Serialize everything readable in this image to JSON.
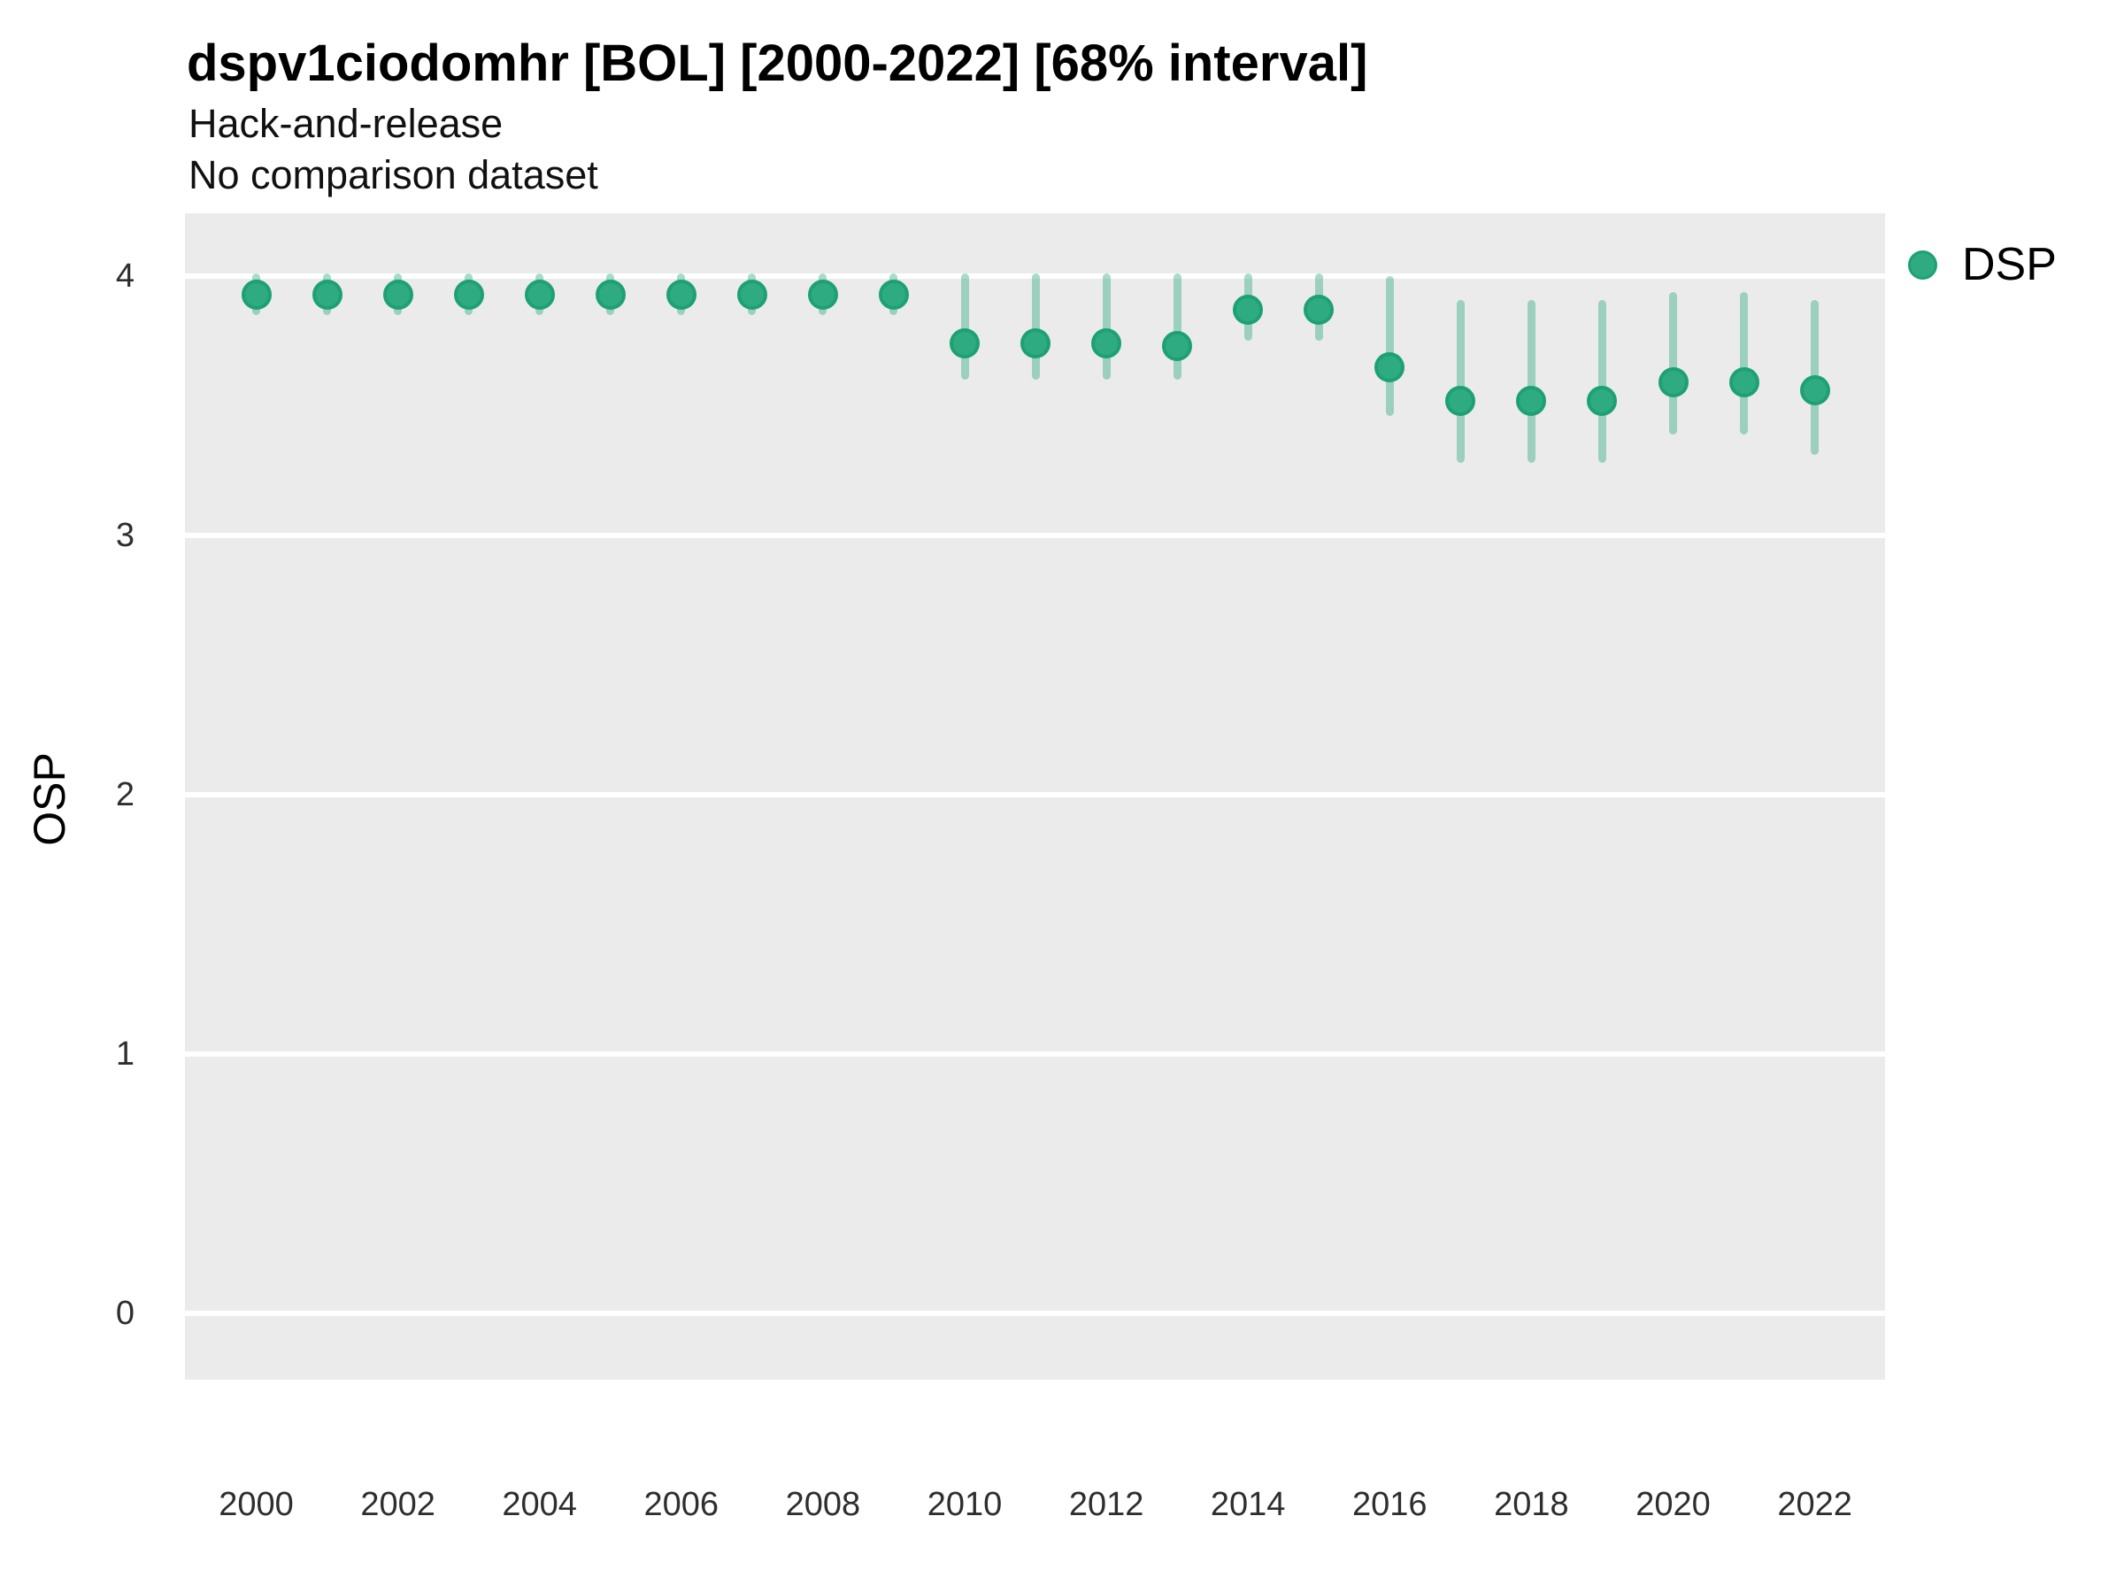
{
  "header": {
    "title": "dspv1ciodomhr [BOL] [2000-2022] [68% interval]",
    "subtitle1": "Hack-and-release",
    "subtitle2": "No comparison dataset"
  },
  "legend": {
    "series_label": "DSP",
    "position": "right-top"
  },
  "colors": {
    "background": "#ffffff",
    "panel": "#ebebeb",
    "gridline": "#ffffff",
    "point_fill": "#2fab81",
    "point_stroke": "#1da173",
    "errorbar": "rgba(47,171,129,0.42)",
    "tick_text": "#2e2e2e",
    "text": "#000000"
  },
  "chart_data": {
    "type": "scatter",
    "title": "dspv1ciodomhr [BOL] [2000-2022] [68% interval]",
    "subtitle": [
      "Hack-and-release",
      "No comparison dataset"
    ],
    "xlabel": "",
    "ylabel": "OSP",
    "grid": "horizontal-major-only",
    "legend_position": "right-top",
    "interval_label": "68% interval",
    "x": [
      2000,
      2001,
      2002,
      2003,
      2004,
      2005,
      2006,
      2007,
      2008,
      2009,
      2010,
      2011,
      2012,
      2013,
      2014,
      2015,
      2016,
      2017,
      2018,
      2019,
      2020,
      2021,
      2022
    ],
    "series": [
      {
        "name": "DSP",
        "values": [
          3.93,
          3.93,
          3.93,
          3.93,
          3.93,
          3.93,
          3.93,
          3.93,
          3.93,
          3.93,
          3.74,
          3.74,
          3.74,
          3.73,
          3.87,
          3.87,
          3.65,
          3.52,
          3.52,
          3.52,
          3.59,
          3.59,
          3.56
        ],
        "lo68": [
          3.85,
          3.85,
          3.85,
          3.85,
          3.85,
          3.85,
          3.85,
          3.85,
          3.85,
          3.85,
          3.6,
          3.6,
          3.6,
          3.6,
          3.75,
          3.75,
          3.46,
          3.28,
          3.28,
          3.28,
          3.39,
          3.39,
          3.31
        ],
        "hi68": [
          4.01,
          4.01,
          4.01,
          4.01,
          4.01,
          4.01,
          4.01,
          4.01,
          4.01,
          4.01,
          4.01,
          4.01,
          4.01,
          4.01,
          4.01,
          4.01,
          4.0,
          3.91,
          3.91,
          3.91,
          3.94,
          3.94,
          3.91
        ]
      }
    ],
    "yticks": [
      0,
      1,
      2,
      3,
      4
    ],
    "ytick_labels": [
      "0",
      "1",
      "2",
      "3",
      "4"
    ],
    "xticks": [
      2000,
      2002,
      2004,
      2006,
      2008,
      2010,
      2012,
      2014,
      2016,
      2018,
      2020,
      2022
    ],
    "xtick_labels": [
      "2000",
      "2002",
      "2004",
      "2006",
      "2008",
      "2010",
      "2012",
      "2014",
      "2016",
      "2018",
      "2020",
      "2022"
    ],
    "ylim": [
      -0.26,
      4.25
    ],
    "xlim": [
      1999,
      2023
    ]
  }
}
